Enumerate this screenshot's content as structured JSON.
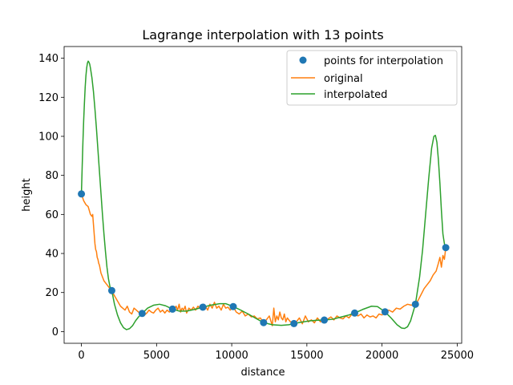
{
  "chart_data": {
    "type": "line",
    "title": "Lagrange interpolation with 13 points",
    "xlabel": "distance",
    "ylabel": "height",
    "xlim": [
      -1150,
      25300
    ],
    "ylim": [
      -6,
      146
    ],
    "xticks": [
      0,
      5000,
      10000,
      15000,
      20000,
      25000
    ],
    "yticks": [
      0,
      20,
      40,
      60,
      80,
      100,
      120,
      140
    ],
    "grid": false,
    "legend_position": "top-right",
    "series": [
      {
        "name": "points for interpolation",
        "kind": "scatter",
        "color": "#1f77b4",
        "x": [
          0,
          2020,
          4040,
          6060,
          8080,
          10100,
          12120,
          14140,
          16160,
          18180,
          20200,
          22220,
          24240
        ],
        "y": [
          70.5,
          21,
          9.3,
          11.5,
          12.5,
          12.8,
          4.6,
          4.1,
          5.9,
          9.5,
          10.1,
          14,
          43
        ]
      },
      {
        "name": "original",
        "kind": "line",
        "color": "#ff7f0e",
        "x": [
          0,
          150,
          300,
          450,
          600,
          700,
          750,
          800,
          850,
          900,
          950,
          1000,
          1050,
          1100,
          1150,
          1200,
          1300,
          1400,
          1500,
          1600,
          1700,
          1800,
          1900,
          2020,
          2150,
          2300,
          2450,
          2600,
          2750,
          2900,
          3050,
          3200,
          3350,
          3500,
          3650,
          3800,
          3950,
          4040,
          4200,
          4350,
          4500,
          4650,
          4800,
          4950,
          5100,
          5250,
          5400,
          5550,
          5700,
          5850,
          6060,
          6200,
          6300,
          6400,
          6500,
          6600,
          6700,
          6800,
          6900,
          7000,
          7150,
          7300,
          7450,
          7600,
          7750,
          7900,
          8080,
          8250,
          8400,
          8550,
          8700,
          8850,
          9000,
          9150,
          9300,
          9450,
          9600,
          9750,
          9900,
          10100,
          10300,
          10500,
          10700,
          10900,
          11100,
          11300,
          11500,
          11700,
          11900,
          12120,
          12300,
          12500,
          12700,
          12800,
          12900,
          13000,
          13100,
          13200,
          13300,
          13400,
          13500,
          13600,
          13700,
          13800,
          13900,
          14140,
          14300,
          14500,
          14700,
          14900,
          15100,
          15300,
          15500,
          15700,
          15900,
          16160,
          16400,
          16600,
          16800,
          17000,
          17200,
          17400,
          17600,
          17800,
          18000,
          18180,
          18400,
          18600,
          18800,
          19000,
          19200,
          19400,
          19600,
          19800,
          20000,
          20200,
          20450,
          20700,
          20950,
          21200,
          21450,
          21700,
          21950,
          22220,
          22400,
          22600,
          22800,
          23000,
          23200,
          23400,
          23600,
          23750,
          23850,
          23950,
          24050,
          24150,
          24240
        ],
        "y": [
          70.5,
          67,
          65,
          64,
          60,
          59,
          60,
          55,
          50,
          45,
          42,
          41,
          38,
          37,
          35,
          34,
          30,
          28,
          26,
          25,
          24,
          23,
          22,
          21,
          19,
          17,
          15,
          13,
          12,
          11,
          13,
          10,
          9,
          12,
          11,
          10,
          9,
          9.3,
          8.5,
          9.5,
          11,
          10,
          9.5,
          11,
          12,
          10,
          11,
          9.5,
          11,
          10,
          11.5,
          12,
          13,
          11,
          14,
          10,
          12,
          11,
          13,
          9.5,
          12,
          11,
          12.5,
          11,
          13,
          12,
          12.5,
          13,
          11,
          14,
          12,
          15,
          12,
          13,
          11,
          14,
          12,
          12.5,
          11,
          12.8,
          10,
          9,
          10.5,
          8,
          9,
          7.5,
          8,
          6.5,
          7,
          4.6,
          6,
          8,
          3,
          12,
          5,
          8,
          6,
          10,
          7,
          6,
          9,
          5,
          7,
          6,
          5,
          4.1,
          5,
          7,
          4,
          8,
          5,
          6,
          4.5,
          7,
          5,
          5.9,
          6.5,
          7.5,
          6,
          8,
          7,
          6.5,
          8,
          7,
          9,
          9.5,
          8,
          9,
          7,
          8.5,
          7.5,
          8,
          7,
          9,
          8.5,
          10.1,
          11,
          10,
          12,
          11.5,
          13,
          14,
          13.5,
          14,
          16,
          19,
          22,
          24,
          26,
          29,
          31,
          35,
          38,
          33,
          39,
          37,
          43
        ]
      },
      {
        "name": "interpolated",
        "kind": "line",
        "color": "#2ca02c",
        "x": [
          0,
          50,
          100,
          150,
          200,
          250,
          300,
          350,
          400,
          450,
          500,
          550,
          600,
          700,
          800,
          900,
          1000,
          1100,
          1200,
          1300,
          1400,
          1500,
          1600,
          1700,
          1800,
          1900,
          2020,
          2200,
          2400,
          2600,
          2800,
          3000,
          3200,
          3400,
          3600,
          3800,
          4040,
          4400,
          4800,
          5200,
          5600,
          6060,
          6500,
          7000,
          7500,
          8080,
          8600,
          9200,
          9600,
          10100,
          10600,
          11100,
          11600,
          12120,
          12700,
          13300,
          13800,
          14140,
          14600,
          15200,
          15700,
          16160,
          16700,
          17300,
          17800,
          18180,
          18700,
          19300,
          19700,
          20200,
          20600,
          21000,
          21300,
          21500,
          21700,
          21900,
          22220,
          22500,
          22700,
          22900,
          23100,
          23300,
          23450,
          23550,
          23650,
          23750,
          23850,
          23950,
          24050,
          24150,
          24240
        ],
        "y": [
          70.5,
          84,
          97,
          108,
          117,
          125,
          131,
          135,
          137.5,
          138.5,
          138,
          137,
          135,
          130,
          123,
          114,
          104,
          93,
          82,
          71,
          60,
          50,
          41,
          33,
          27,
          23,
          21,
          14,
          8.5,
          4.5,
          2,
          1,
          1.5,
          3,
          5.5,
          7.5,
          9.3,
          12,
          13.5,
          14,
          13.2,
          11.5,
          10.5,
          10.5,
          11.3,
          12.5,
          13.5,
          14.3,
          14.3,
          12.8,
          11,
          9,
          6.8,
          4.6,
          3.5,
          3.2,
          3.5,
          4.1,
          4.8,
          5.5,
          5.8,
          5.9,
          6.3,
          7.5,
          8.5,
          9.5,
          11.3,
          13,
          12.8,
          10.1,
          7,
          3.5,
          1.8,
          1.6,
          2.5,
          5.5,
          14,
          28,
          42,
          60,
          78,
          94,
          100,
          100.5,
          97,
          88,
          76,
          62,
          50,
          45,
          43
        ]
      }
    ]
  }
}
